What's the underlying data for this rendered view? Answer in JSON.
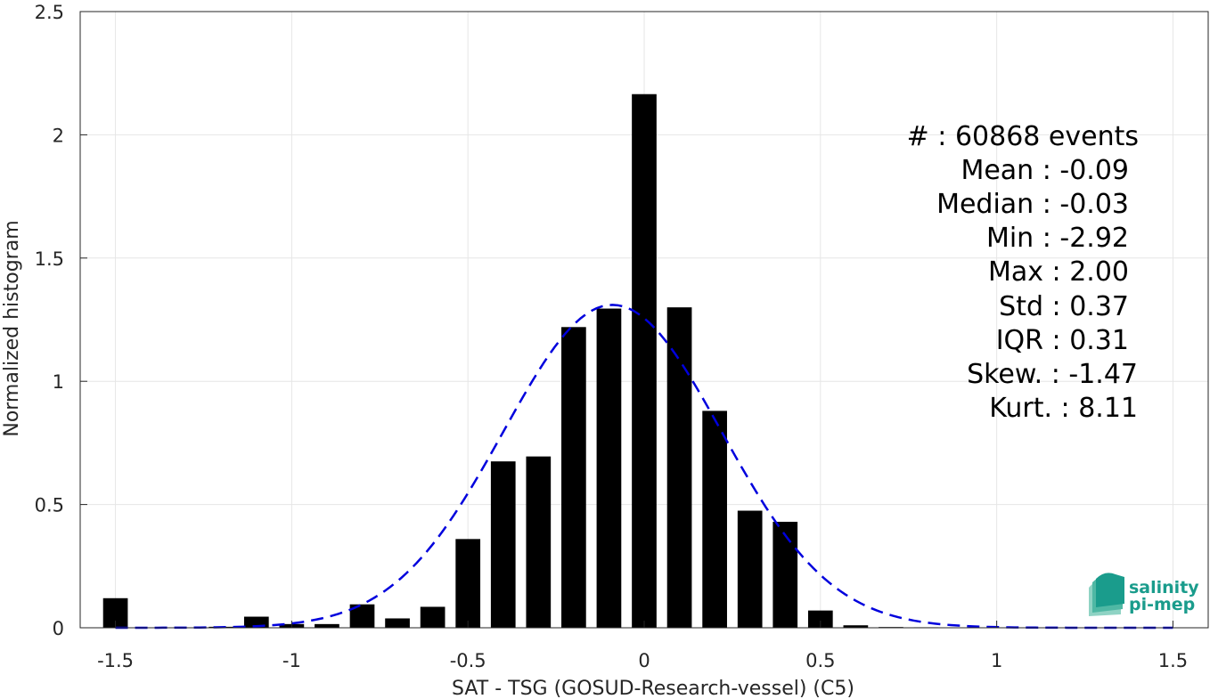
{
  "chart_data": {
    "type": "bar",
    "xlabel": "SAT - TSG (GOSUD-Research-vessel) (C5)",
    "ylabel": "Normalized histogram",
    "xlim": [
      -1.6,
      1.6
    ],
    "ylim": [
      0,
      2.5
    ],
    "grid": true,
    "x_ticks": [
      -1.5,
      -1,
      -0.5,
      0,
      0.5,
      1,
      1.5
    ],
    "x_tick_labels": [
      "-1.5",
      "-1",
      "-0.5",
      "0",
      "0.5",
      "1",
      "1.5"
    ],
    "y_ticks": [
      0,
      0.5,
      1,
      1.5,
      2,
      2.5
    ],
    "y_tick_labels": [
      "0",
      "0.5",
      "1",
      "1.5",
      "2",
      "2.5"
    ],
    "bar_width": 0.07,
    "bars": {
      "x": [
        -1.5,
        -1.4,
        -1.3,
        -1.2,
        -1.1,
        -1.0,
        -0.9,
        -0.8,
        -0.7,
        -0.6,
        -0.5,
        -0.4,
        -0.3,
        -0.2,
        -0.1,
        0.0,
        0.1,
        0.2,
        0.3,
        0.4,
        0.5,
        0.6,
        0.7,
        0.8,
        0.9,
        1.0,
        1.1,
        1.2,
        1.3,
        1.4,
        1.5
      ],
      "values": [
        0.12,
        0,
        0,
        0.004,
        0.045,
        0.015,
        0.015,
        0.095,
        0.038,
        0.085,
        0.36,
        0.675,
        0.695,
        1.22,
        1.295,
        2.165,
        1.3,
        0.88,
        0.475,
        0.43,
        0.07,
        0.01,
        0.003,
        0.002,
        0.001,
        0.001,
        0,
        0,
        0,
        0,
        0
      ],
      "color": "#000000"
    },
    "fit": {
      "style": "dashed",
      "color": "#0000dd",
      "mean": -0.09,
      "std": 0.31,
      "peak": 1.31,
      "x_range": [
        -1.5,
        1.5
      ]
    },
    "annotations": [
      "#  : 60868 events",
      "Mean : -0.09",
      "Median : -0.03",
      "Min : -2.92",
      "Max : 2.00",
      "Std : 0.37",
      "IQR : 0.31",
      "Skew. : -1.47",
      "Kurt. : 8.11"
    ]
  },
  "logo": {
    "line1": "salinity",
    "line2": "pi-mep"
  }
}
